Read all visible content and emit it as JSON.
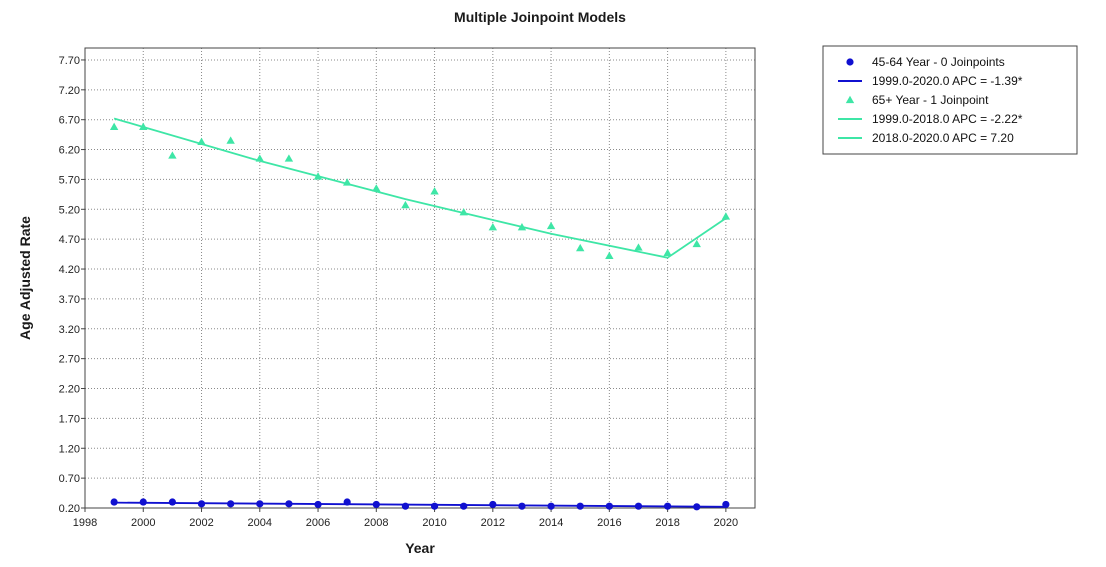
{
  "chart_data": {
    "type": "line",
    "title": "Multiple Joinpoint Models",
    "xlabel": "Year",
    "ylabel": "Age Adjusted Rate",
    "xlim": [
      1998,
      2021
    ],
    "ylim": [
      0.2,
      7.9
    ],
    "x_ticks": [
      1998,
      2000,
      2002,
      2004,
      2006,
      2008,
      2010,
      2012,
      2014,
      2016,
      2018,
      2020
    ],
    "y_ticks": [
      0.2,
      0.7,
      1.2,
      1.7,
      2.2,
      2.7,
      3.2,
      3.7,
      4.2,
      4.7,
      5.2,
      5.7,
      6.2,
      6.7,
      7.2,
      7.7
    ],
    "y_tick_labels": [
      "0.20",
      "0.70",
      "1.20",
      "1.70",
      "2.20",
      "2.70",
      "3.20",
      "3.70",
      "4.20",
      "4.70",
      "5.20",
      "5.70",
      "6.20",
      "6.70",
      "7.20",
      "7.70"
    ],
    "grid": true,
    "legend_position": "right",
    "series": [
      {
        "name": "45-64 Year - 0 Joinpoints",
        "kind": "points",
        "marker": "circle",
        "color": "#1010d0",
        "x": [
          1999,
          2000,
          2001,
          2002,
          2003,
          2004,
          2005,
          2006,
          2007,
          2008,
          2009,
          2010,
          2011,
          2012,
          2013,
          2014,
          2015,
          2016,
          2017,
          2018,
          2019,
          2020
        ],
        "y": [
          0.3,
          0.3,
          0.3,
          0.27,
          0.27,
          0.27,
          0.27,
          0.26,
          0.3,
          0.26,
          0.23,
          0.23,
          0.23,
          0.26,
          0.23,
          0.23,
          0.23,
          0.23,
          0.23,
          0.23,
          0.22,
          0.26
        ]
      },
      {
        "name": "1999.0-2020.0 APC  = -1.39*",
        "kind": "line",
        "color": "#1010d0",
        "x": [
          1999,
          2020
        ],
        "y": [
          0.29,
          0.22
        ]
      },
      {
        "name": "65+ Year - 1 Joinpoint",
        "kind": "points",
        "marker": "triangle",
        "color": "#3ee6a6",
        "x": [
          1999,
          2000,
          2001,
          2002,
          2003,
          2004,
          2005,
          2006,
          2007,
          2008,
          2009,
          2010,
          2011,
          2012,
          2013,
          2014,
          2015,
          2016,
          2017,
          2018,
          2019,
          2020
        ],
        "y": [
          6.58,
          6.58,
          6.1,
          6.33,
          6.35,
          6.05,
          6.05,
          5.75,
          5.65,
          5.55,
          5.27,
          5.5,
          5.15,
          4.9,
          4.9,
          4.92,
          4.55,
          4.42,
          4.56,
          4.47,
          4.62,
          5.08
        ]
      },
      {
        "name": "1999.0-2018.0 APC  = -2.22*",
        "kind": "line",
        "color": "#3ee6a6",
        "x": [
          1999,
          2004,
          2009,
          2014,
          2018
        ],
        "y": [
          6.72,
          6.01,
          5.37,
          4.79,
          4.39
        ]
      },
      {
        "name": "2018.0-2020.0 APC  =  7.20",
        "kind": "line",
        "color": "#3ee6a6",
        "x": [
          2018,
          2020
        ],
        "y": [
          4.39,
          5.05
        ]
      }
    ]
  }
}
